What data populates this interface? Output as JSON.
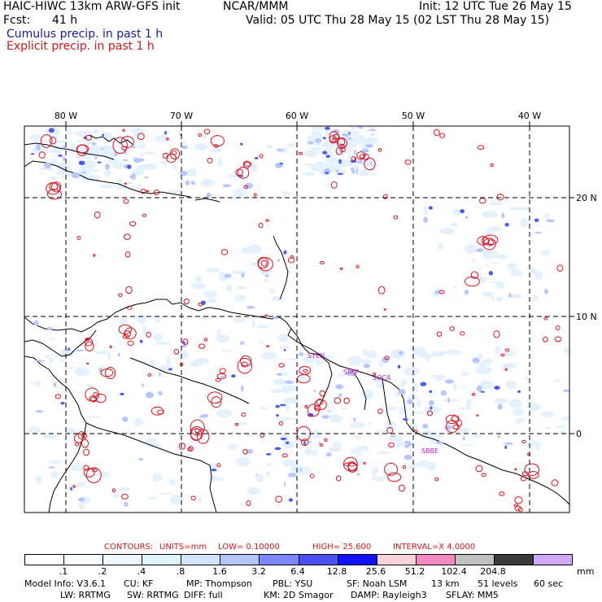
{
  "header": {
    "model_title": "HAIC-HIWC 13km ARW-GFS init",
    "org": "NCAR/MMM",
    "init": "Init: 12 UTC Tue 26 May 15",
    "fcst_label": "Fcst:",
    "fcst_value": "41 h",
    "valid": "Valid: 05 UTC Thu 28 May 15 (02 LST Thu 28 May 15)",
    "cumulus": "Cumulus precip. in past 1 h",
    "explicit": "Explicit precip. in past 1 h"
  },
  "map": {
    "lon_labels": [
      "80 W",
      "70 W",
      "60 W",
      "50 W",
      "40 W"
    ],
    "lat_labels": [
      "20 N",
      "10 N",
      "0"
    ],
    "stations": [
      "SYEN",
      "SMJP",
      "SOCA",
      "SBBE"
    ],
    "colors": {
      "coast": "#000000",
      "grid": "#000000",
      "contour": "#e0101a",
      "station": "#c020c0",
      "shade_light": "#e4f2ff",
      "shade_mid": "#b8c8ff",
      "shade_dark": "#4a5cf0"
    }
  },
  "contours": {
    "label": "CONTOURS:",
    "units": "UNITS=mm",
    "low": "LOW=  0.10000",
    "high": "HIGH=  25.600",
    "interval": "INTERVAL=X  4.0000"
  },
  "colorbar": {
    "unit": "mm",
    "labels": [
      ".1",
      ".2",
      ".4",
      ".8",
      "1.6",
      "3.2",
      "6.4",
      "12.8",
      "25.6",
      "51.2",
      "102.4",
      "204.8"
    ],
    "colors": [
      "#ffffff",
      "#f6fbff",
      "#eef8ff",
      "#e0f6f6",
      "#d2e4ff",
      "#b4c4ff",
      "#7c86ff",
      "#4a50f8",
      "#1010f8",
      "#fad4dc",
      "#f08ac0",
      "#c0c0c0",
      "#3a3a3a",
      "#d2a8f8"
    ]
  },
  "model_info": {
    "line1": [
      "Model Info: V3.6.1",
      "CU: KF",
      "MP: Thompson",
      "PBL: YSU",
      "SF: Noah LSM",
      "13 km",
      "51 levels",
      "60 sec"
    ],
    "line2": [
      "LW: RRTMG",
      "SW: RRTMG",
      "DIFF: full",
      "KM: 2D Smagor",
      "DAMP: Rayleigh3",
      "SFLAY: MM5"
    ]
  }
}
